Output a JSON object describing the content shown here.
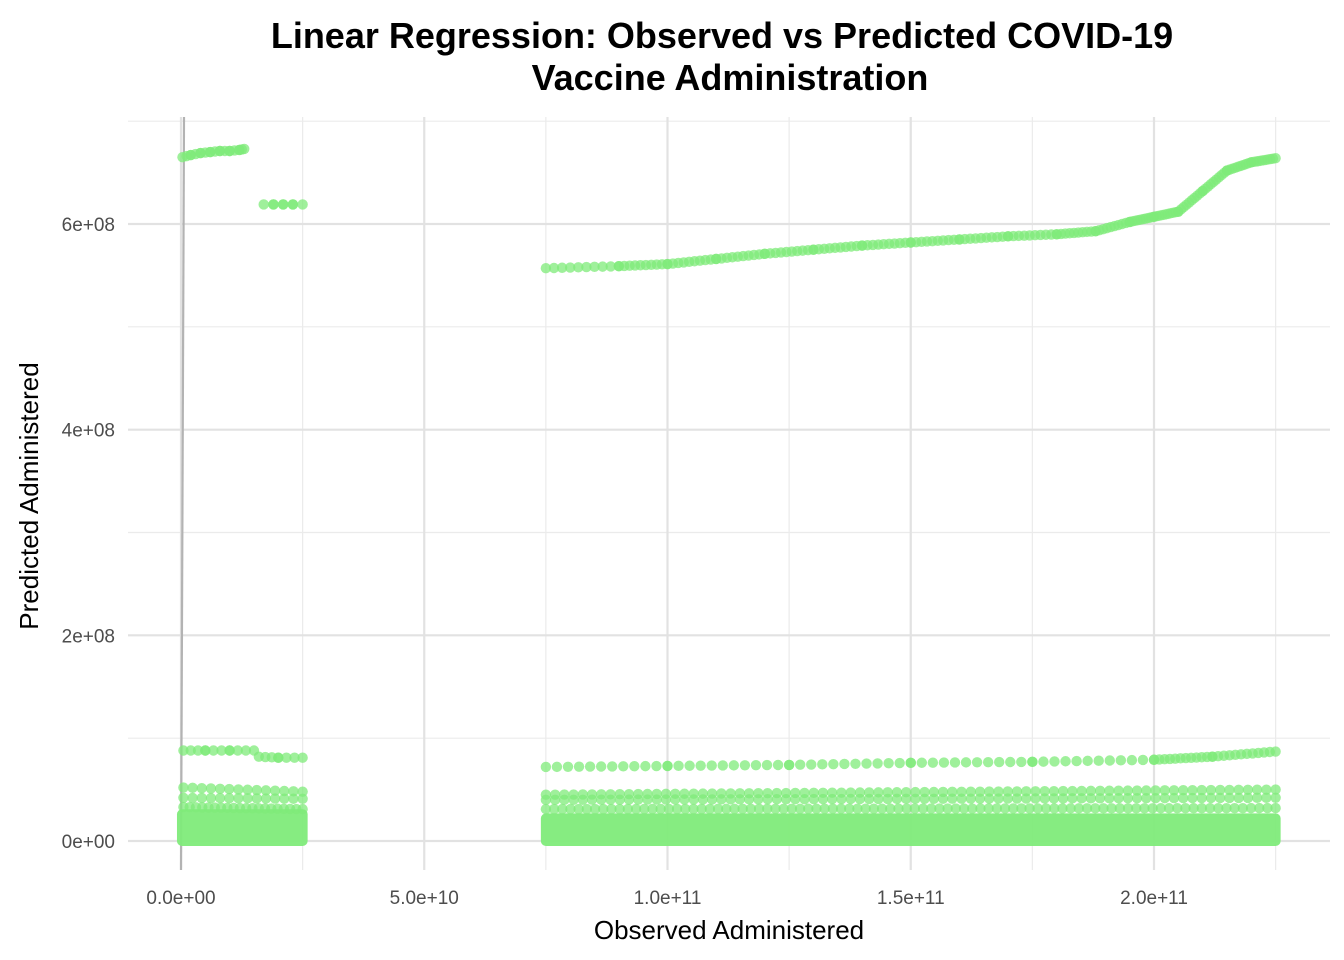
{
  "chart_data": {
    "type": "scatter",
    "title_lines": [
      "Linear Regression: Observed vs Predicted COVID-19",
      "Vaccine Administration"
    ],
    "xlabel": "Observed Administered",
    "ylabel": "Predicted Administered",
    "xlim": [
      -2200000000,
      225000000000
    ],
    "ylim": [
      -30000000,
      705000000
    ],
    "x_ticks": [
      {
        "value": 0,
        "label": "0.0e+00"
      },
      {
        "value": 50000000000,
        "label": "5.0e+10"
      },
      {
        "value": 100000000000,
        "label": "1.0e+11"
      },
      {
        "value": 150000000000,
        "label": "1.5e+11"
      },
      {
        "value": 200000000000,
        "label": "2.0e+11"
      }
    ],
    "y_ticks": [
      {
        "value": 0,
        "label": "0e+00"
      },
      {
        "value": 200000000,
        "label": "2e+08"
      },
      {
        "value": 400000000,
        "label": "4e+08"
      },
      {
        "value": 600000000,
        "label": "6e+08"
      }
    ],
    "grid": true,
    "reference_line": {
      "x": 0
    },
    "point_color": "#7FEB7A",
    "reference_line_color": "#b3b3b3",
    "series": [
      {
        "values": [
          [
            300000000.0,
            665000000.0
          ],
          [
            2000000000.0,
            667000000.0
          ],
          [
            4000000000.0,
            669000000.0
          ],
          [
            6000000000.0,
            670000000.0
          ],
          [
            8000000000.0,
            671000000.0
          ],
          [
            10000000000.0,
            671000000.0
          ],
          [
            12000000000.0,
            672000000.0
          ],
          [
            13000000000.0,
            673000000.0
          ]
        ]
      },
      {
        "values": [
          [
            17000000000.0,
            619000000.0
          ],
          [
            19000000000.0,
            619000000.0
          ],
          [
            21000000000.0,
            619000000.0
          ],
          [
            23000000000.0,
            619000000.0
          ],
          [
            25000000000.0,
            619000000.0
          ]
        ]
      },
      {
        "values": [
          [
            75000000000.0,
            557000000.0
          ],
          [
            90000000000.0,
            559000000.0
          ],
          [
            100000000000.0,
            561000000.0
          ],
          [
            110000000000.0,
            566000000.0
          ],
          [
            120000000000.0,
            571000000.0
          ],
          [
            130000000000.0,
            575000000.0
          ],
          [
            140000000000.0,
            579000000.0
          ],
          [
            150000000000.0,
            582000000.0
          ],
          [
            160000000000.0,
            585000000.0
          ],
          [
            170000000000.0,
            588000000.0
          ],
          [
            180000000000.0,
            590000000.0
          ],
          [
            188000000000.0,
            593000000.0
          ],
          [
            195000000000.0,
            602000000.0
          ],
          [
            200000000000.0,
            607000000.0
          ],
          [
            205000000000.0,
            612000000.0
          ],
          [
            210000000000.0,
            632000000.0
          ],
          [
            215000000000.0,
            652000000.0
          ],
          [
            220000000000.0,
            660000000.0
          ],
          [
            225000000000.0,
            664000000.0
          ]
        ]
      },
      {
        "values": [
          [
            500000000.0,
            88000000.0
          ],
          [
            5000000000.0,
            88000000.0
          ],
          [
            10000000000.0,
            88000000.0
          ],
          [
            15000000000.0,
            88000000.0
          ],
          [
            16000000000.0,
            82000000.0
          ],
          [
            20000000000.0,
            81000000.0
          ],
          [
            25000000000.0,
            81000000.0
          ],
          [
            75000000000.0,
            72000000.0
          ],
          [
            100000000000.0,
            73000000.0
          ],
          [
            125000000000.0,
            74000000.0
          ],
          [
            150000000000.0,
            76000000.0
          ],
          [
            175000000000.0,
            77000000.0
          ],
          [
            200000000000.0,
            79000000.0
          ],
          [
            212000000000.0,
            82000000.0
          ],
          [
            225000000000.0,
            87000000.0
          ]
        ]
      },
      {
        "values": [
          [
            500000000.0,
            52000000.0
          ],
          [
            25000000000.0,
            48000000.0
          ],
          [
            75000000000.0,
            45000000.0
          ],
          [
            225000000000.0,
            50000000.0
          ],
          [
            500000000.0,
            42000000.0
          ],
          [
            25000000000.0,
            41000000.0
          ],
          [
            75000000000.0,
            40000000.0
          ],
          [
            225000000000.0,
            42000000.0
          ]
        ]
      },
      {
        "values": [
          [
            200000000.0,
            5000000.0
          ],
          [
            25000000000.0,
            5000000.0
          ],
          [
            75000000000.0,
            5000000.0
          ],
          [
            225000000000.0,
            5000000.0
          ]
        ]
      }
    ]
  }
}
